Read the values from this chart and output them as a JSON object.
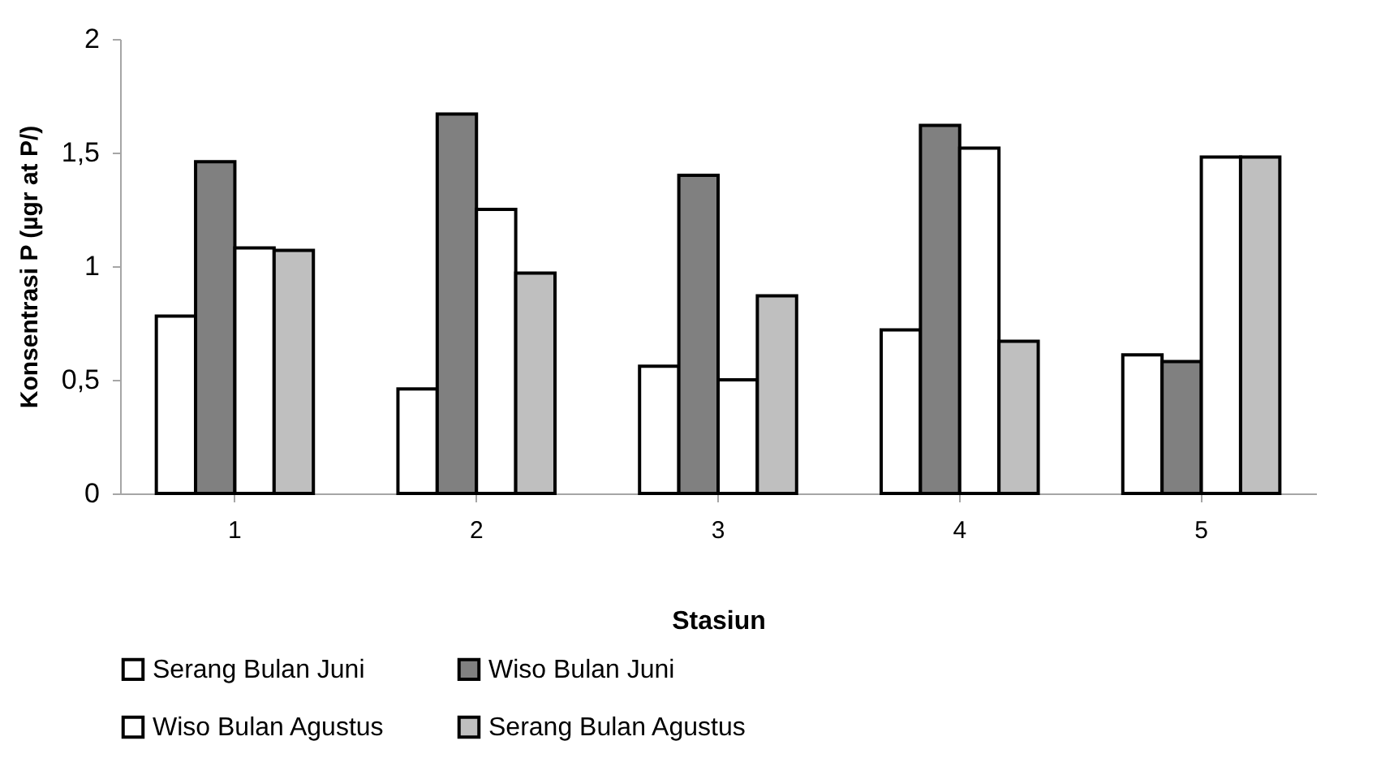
{
  "chart_data": {
    "type": "bar",
    "xlabel": "Stasiun",
    "ylabel": "Konsentrasi P (µgr at P/)",
    "categories": [
      "1",
      "2",
      "3",
      "4",
      "5"
    ],
    "series": [
      {
        "name": "Serang Bulan Juni",
        "color": "#ffffff",
        "values": [
          0.78,
          0.46,
          0.56,
          0.72,
          0.61
        ]
      },
      {
        "name": "Wiso Bulan Juni",
        "color": "#808080",
        "values": [
          1.46,
          1.67,
          1.4,
          1.62,
          0.58
        ]
      },
      {
        "name": "Wiso Bulan Agustus",
        "color": "#ffffff",
        "values": [
          1.08,
          1.25,
          0.5,
          1.52,
          1.48
        ]
      },
      {
        "name": "Serang Bulan Agustus",
        "color": "#bfbfbf",
        "values": [
          1.07,
          0.97,
          0.87,
          0.67,
          1.48
        ]
      }
    ],
    "ylim": [
      0,
      2
    ],
    "yticks": [
      0,
      {
        "value": 0.5,
        "label": "0,5"
      },
      1,
      {
        "value": 1.5,
        "label": "1,5"
      },
      2
    ],
    "grid": false,
    "legend": "bottom"
  }
}
